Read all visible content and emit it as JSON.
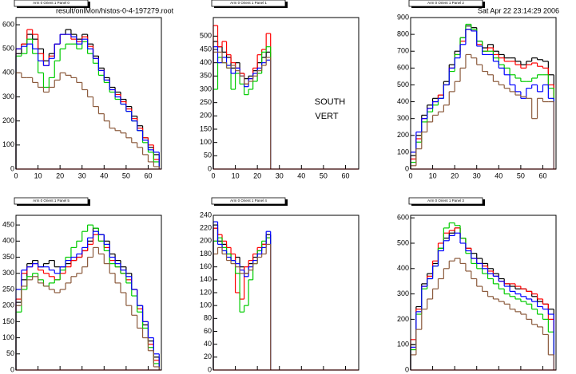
{
  "header": {
    "file": "result/onlMon/histos-0-4-197279.root",
    "date": "Sat Apr 22 23:14:29 2006"
  },
  "labels": [
    "SOUTH",
    "VERT"
  ],
  "chart_data": [
    {
      "type": "histogram",
      "title": "Arm 0 Orient 1 Panel 0",
      "bins": [
        0,
        2.5,
        5,
        7.5,
        10,
        12.5,
        15,
        17.5,
        20,
        22.5,
        25,
        27.5,
        30,
        32.5,
        35,
        37.5,
        40,
        42.5,
        45,
        47.5,
        50,
        52.5,
        55,
        57.5,
        60,
        62.5,
        65
      ],
      "xlim": [
        0,
        66
      ],
      "xticks": [
        0,
        10,
        20,
        30,
        40,
        50,
        60
      ],
      "ylim": [
        0,
        630
      ],
      "yticks": [
        0,
        100,
        200,
        300,
        400,
        500,
        600
      ],
      "series": [
        {
          "color": "#000000",
          "values": [
            480,
            520,
            560,
            540,
            500,
            450,
            480,
            520,
            560,
            580,
            560,
            540,
            560,
            520,
            470,
            420,
            380,
            340,
            320,
            290,
            260,
            220,
            180,
            130,
            90,
            60
          ]
        },
        {
          "color": "#ff0000",
          "values": [
            500,
            520,
            580,
            560,
            480,
            430,
            470,
            520,
            560,
            560,
            540,
            530,
            550,
            510,
            460,
            410,
            370,
            330,
            310,
            280,
            250,
            210,
            170,
            130,
            100,
            40
          ]
        },
        {
          "color": "#00cc00",
          "values": [
            470,
            480,
            540,
            480,
            400,
            340,
            380,
            450,
            500,
            520,
            520,
            500,
            530,
            480,
            440,
            390,
            360,
            320,
            290,
            270,
            240,
            200,
            160,
            110,
            70,
            30
          ]
        },
        {
          "color": "#0000ff",
          "values": [
            500,
            510,
            520,
            500,
            450,
            430,
            460,
            520,
            560,
            560,
            550,
            520,
            540,
            500,
            460,
            410,
            370,
            330,
            300,
            270,
            240,
            200,
            160,
            120,
            80,
            70
          ]
        },
        {
          "color": "#8b5a3c",
          "values": [
            400,
            380,
            380,
            360,
            340,
            320,
            340,
            370,
            400,
            390,
            380,
            360,
            330,
            300,
            260,
            230,
            200,
            170,
            160,
            150,
            130,
            110,
            90,
            60,
            30,
            10
          ]
        }
      ]
    },
    {
      "type": "histogram",
      "title": "Arm 0 Orient 1 Panel 1",
      "bins": [
        0,
        2,
        4,
        6,
        8,
        10,
        12,
        14,
        16,
        18,
        20,
        22,
        24,
        26
      ],
      "xlim": [
        0,
        66
      ],
      "xticks": [
        0,
        10,
        20,
        30,
        40,
        50,
        60
      ],
      "ylim": [
        0,
        570
      ],
      "yticks": [
        0,
        50,
        100,
        150,
        200,
        250,
        300,
        350,
        400,
        450,
        500
      ],
      "series": [
        {
          "color": "#000000",
          "values": [
            480,
            460,
            440,
            420,
            380,
            400,
            360,
            340,
            350,
            370,
            400,
            420,
            440
          ]
        },
        {
          "color": "#ff0000",
          "values": [
            540,
            460,
            480,
            430,
            400,
            380,
            360,
            320,
            340,
            380,
            430,
            450,
            510
          ]
        },
        {
          "color": "#00cc00",
          "values": [
            300,
            420,
            400,
            380,
            300,
            360,
            320,
            280,
            300,
            330,
            360,
            440,
            460
          ]
        },
        {
          "color": "#0000ff",
          "values": [
            460,
            400,
            420,
            390,
            360,
            380,
            350,
            310,
            340,
            360,
            380,
            400,
            410
          ]
        },
        {
          "color": "#8b5a3c",
          "values": [
            440,
            440,
            400,
            380,
            390,
            370,
            350,
            320,
            330,
            350,
            370,
            390,
            420
          ]
        }
      ]
    },
    {
      "type": "histogram",
      "title": "Arm 0 Orient 1 Panel 2",
      "bins": [
        0,
        2.5,
        5,
        7.5,
        10,
        12.5,
        15,
        17.5,
        20,
        22.5,
        25,
        27.5,
        30,
        32.5,
        35,
        37.5,
        40,
        42.5,
        45,
        47.5,
        50,
        52.5,
        55,
        57.5,
        60,
        62.5,
        65
      ],
      "xlim": [
        0,
        66
      ],
      "xticks": [
        0,
        10,
        20,
        30,
        40,
        50,
        60
      ],
      "ylim": [
        0,
        900
      ],
      "yticks": [
        0,
        100,
        200,
        300,
        400,
        500,
        600,
        700,
        800,
        900
      ],
      "series": [
        {
          "color": "#000000",
          "values": [
            80,
            200,
            320,
            380,
            420,
            440,
            520,
            620,
            700,
            780,
            850,
            840,
            760,
            720,
            740,
            700,
            680,
            660,
            660,
            640,
            620,
            640,
            660,
            650,
            640,
            560
          ]
        },
        {
          "color": "#ff0000",
          "values": [
            60,
            180,
            300,
            360,
            400,
            440,
            500,
            600,
            680,
            760,
            830,
            820,
            740,
            700,
            720,
            680,
            660,
            640,
            640,
            620,
            600,
            620,
            630,
            610,
            600,
            500
          ]
        },
        {
          "color": "#00cc00",
          "values": [
            40,
            160,
            280,
            340,
            380,
            420,
            500,
            580,
            680,
            780,
            860,
            830,
            760,
            700,
            700,
            660,
            620,
            600,
            560,
            540,
            520,
            520,
            540,
            560,
            560,
            480
          ]
        },
        {
          "color": "#0000ff",
          "values": [
            100,
            220,
            300,
            360,
            400,
            420,
            500,
            600,
            660,
            740,
            830,
            820,
            730,
            680,
            680,
            640,
            600,
            560,
            500,
            460,
            420,
            480,
            500,
            460,
            500,
            420
          ]
        },
        {
          "color": "#8b5a3c",
          "values": [
            20,
            120,
            220,
            280,
            320,
            340,
            380,
            460,
            520,
            600,
            680,
            660,
            620,
            580,
            560,
            520,
            500,
            480,
            460,
            440,
            430,
            420,
            300,
            420,
            400,
            400
          ]
        }
      ]
    },
    {
      "type": "histogram",
      "title": "Arm 0 Orient 1 Panel 5",
      "bins": [
        0,
        2.5,
        5,
        7.5,
        10,
        12.5,
        15,
        17.5,
        20,
        22.5,
        25,
        27.5,
        30,
        32.5,
        35,
        37.5,
        40,
        42.5,
        45,
        47.5,
        50,
        52.5,
        55,
        57.5,
        60,
        62.5,
        65
      ],
      "xlim": [
        0,
        66
      ],
      "xticks": [
        0,
        10,
        20,
        30,
        40,
        50,
        60
      ],
      "ylim": [
        0,
        480
      ],
      "yticks": [
        0,
        50,
        100,
        150,
        200,
        250,
        300,
        350,
        400,
        450
      ],
      "series": [
        {
          "color": "#000000",
          "values": [
            210,
            280,
            330,
            340,
            320,
            330,
            340,
            320,
            320,
            330,
            340,
            350,
            370,
            400,
            440,
            420,
            400,
            360,
            340,
            320,
            300,
            250,
            200,
            140,
            90,
            40
          ]
        },
        {
          "color": "#ff0000",
          "values": [
            220,
            300,
            320,
            330,
            310,
            300,
            290,
            280,
            300,
            320,
            340,
            350,
            370,
            390,
            420,
            400,
            380,
            340,
            320,
            300,
            280,
            250,
            190,
            150,
            80,
            30
          ]
        },
        {
          "color": "#00cc00",
          "values": [
            180,
            250,
            290,
            300,
            280,
            260,
            270,
            280,
            310,
            350,
            380,
            400,
            430,
            450,
            440,
            400,
            370,
            330,
            320,
            300,
            270,
            230,
            180,
            130,
            70,
            20
          ]
        },
        {
          "color": "#0000ff",
          "values": [
            250,
            310,
            320,
            330,
            320,
            320,
            310,
            300,
            320,
            340,
            350,
            360,
            380,
            410,
            430,
            420,
            390,
            350,
            330,
            310,
            290,
            250,
            200,
            150,
            100,
            50
          ]
        },
        {
          "color": "#8b5a3c",
          "values": [
            200,
            260,
            280,
            290,
            270,
            260,
            250,
            240,
            250,
            270,
            290,
            300,
            320,
            350,
            380,
            360,
            330,
            300,
            270,
            240,
            200,
            170,
            130,
            100,
            60,
            10
          ]
        }
      ]
    },
    {
      "type": "histogram",
      "title": "Arm 0 Orient 1 Panel 4",
      "bins": [
        0,
        2,
        4,
        6,
        8,
        10,
        12,
        14,
        16,
        18,
        20,
        22,
        24,
        26
      ],
      "xlim": [
        0,
        66
      ],
      "xticks": [
        0,
        10,
        20,
        30,
        40,
        50,
        60
      ],
      "ylim": [
        0,
        240
      ],
      "yticks": [
        0,
        20,
        40,
        60,
        80,
        100,
        120,
        140,
        160,
        180,
        200,
        220,
        240
      ],
      "series": [
        {
          "color": "#000000",
          "values": [
            225,
            200,
            195,
            180,
            170,
            175,
            160,
            150,
            165,
            175,
            185,
            195,
            210
          ]
        },
        {
          "color": "#ff0000",
          "values": [
            220,
            210,
            200,
            190,
            180,
            120,
            110,
            160,
            170,
            180,
            190,
            195,
            205
          ]
        },
        {
          "color": "#00cc00",
          "values": [
            200,
            205,
            190,
            180,
            170,
            150,
            90,
            100,
            140,
            165,
            185,
            200,
            205
          ]
        },
        {
          "color": "#0000ff",
          "values": [
            230,
            195,
            185,
            175,
            170,
            165,
            155,
            145,
            160,
            170,
            180,
            190,
            215
          ]
        },
        {
          "color": "#8b5a3c",
          "values": [
            180,
            190,
            180,
            170,
            165,
            160,
            150,
            150,
            155,
            165,
            175,
            180,
            195
          ]
        }
      ]
    },
    {
      "type": "histogram",
      "title": "Arm 0 Orient 1 Panel 3",
      "bins": [
        0,
        2.5,
        5,
        7.5,
        10,
        12.5,
        15,
        17.5,
        20,
        22.5,
        25,
        27.5,
        30,
        32.5,
        35,
        37.5,
        40,
        42.5,
        45,
        47.5,
        50,
        52.5,
        55,
        57.5,
        60,
        62.5,
        65
      ],
      "xlim": [
        0,
        66
      ],
      "xticks": [
        0,
        10,
        20,
        30,
        40,
        50,
        60
      ],
      "ylim": [
        0,
        610
      ],
      "yticks": [
        0,
        100,
        200,
        300,
        400,
        500,
        600
      ],
      "series": [
        {
          "color": "#000000",
          "values": [
            100,
            250,
            340,
            380,
            420,
            480,
            520,
            540,
            560,
            520,
            480,
            460,
            440,
            420,
            400,
            380,
            360,
            340,
            330,
            320,
            320,
            310,
            290,
            270,
            260,
            240
          ]
        },
        {
          "color": "#ff0000",
          "values": [
            120,
            240,
            330,
            370,
            430,
            500,
            540,
            550,
            560,
            520,
            480,
            440,
            420,
            410,
            390,
            370,
            350,
            340,
            340,
            330,
            320,
            310,
            300,
            280,
            260,
            200
          ]
        },
        {
          "color": "#00cc00",
          "values": [
            80,
            220,
            320,
            360,
            410,
            480,
            560,
            580,
            570,
            520,
            460,
            420,
            400,
            380,
            360,
            340,
            320,
            300,
            290,
            280,
            270,
            260,
            240,
            220,
            200,
            150
          ]
        },
        {
          "color": "#0000ff",
          "values": [
            90,
            230,
            330,
            360,
            410,
            470,
            510,
            530,
            540,
            500,
            470,
            440,
            420,
            400,
            380,
            370,
            350,
            330,
            310,
            300,
            290,
            280,
            270,
            250,
            240,
            220
          ]
        },
        {
          "color": "#8b5a3c",
          "values": [
            60,
            160,
            240,
            280,
            320,
            360,
            400,
            430,
            440,
            420,
            390,
            360,
            330,
            310,
            290,
            280,
            270,
            260,
            240,
            230,
            220,
            200,
            180,
            170,
            140,
            60
          ]
        }
      ]
    }
  ]
}
